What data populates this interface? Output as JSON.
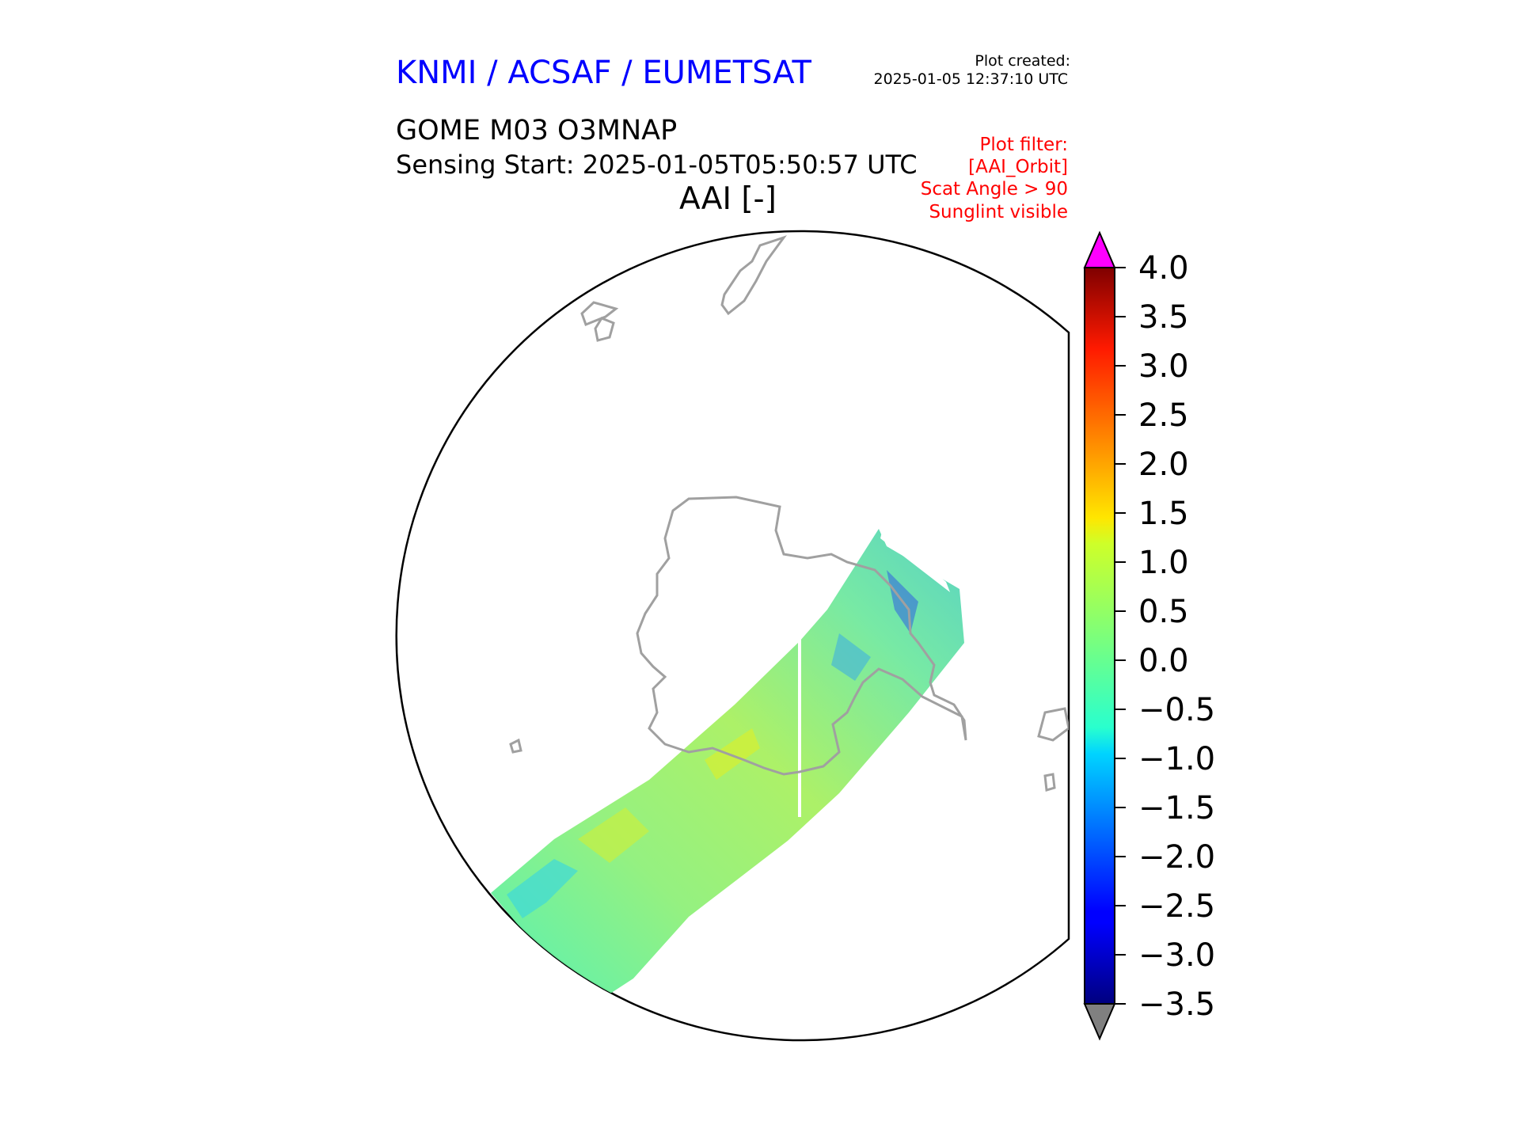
{
  "header": {
    "organization": "KNMI / ACSAF / EUMETSAT",
    "plot_created_label": "Plot created:",
    "plot_created_time": "2025-01-05 12:37:10 UTC",
    "product": "GOME M03 O3MNAP",
    "sensing_start": "Sensing Start: 2025-01-05T05:50:57 UTC",
    "variable_title": "AAI [-]",
    "plot_filter": [
      "Plot filter:",
      "[AAI_Orbit]",
      "Scat Angle > 90",
      "Sunglint visible"
    ]
  },
  "map": {
    "projection": "south-polar",
    "coastline_color": "#a0a0a0",
    "swath_dominant_range": [
      -1.0,
      1.5
    ]
  },
  "colorbar": {
    "min": -3.5,
    "max": 4.0,
    "ticks": [
      "4.0",
      "3.5",
      "3.0",
      "2.5",
      "2.0",
      "1.5",
      "1.0",
      "0.5",
      "0.0",
      "−0.5",
      "−1.0",
      "−1.5",
      "−2.0",
      "−2.5",
      "−3.0",
      "−3.5"
    ],
    "colormap": "jet",
    "extend_over_color": "#ff00ff",
    "extend_under_color": "#808080"
  }
}
